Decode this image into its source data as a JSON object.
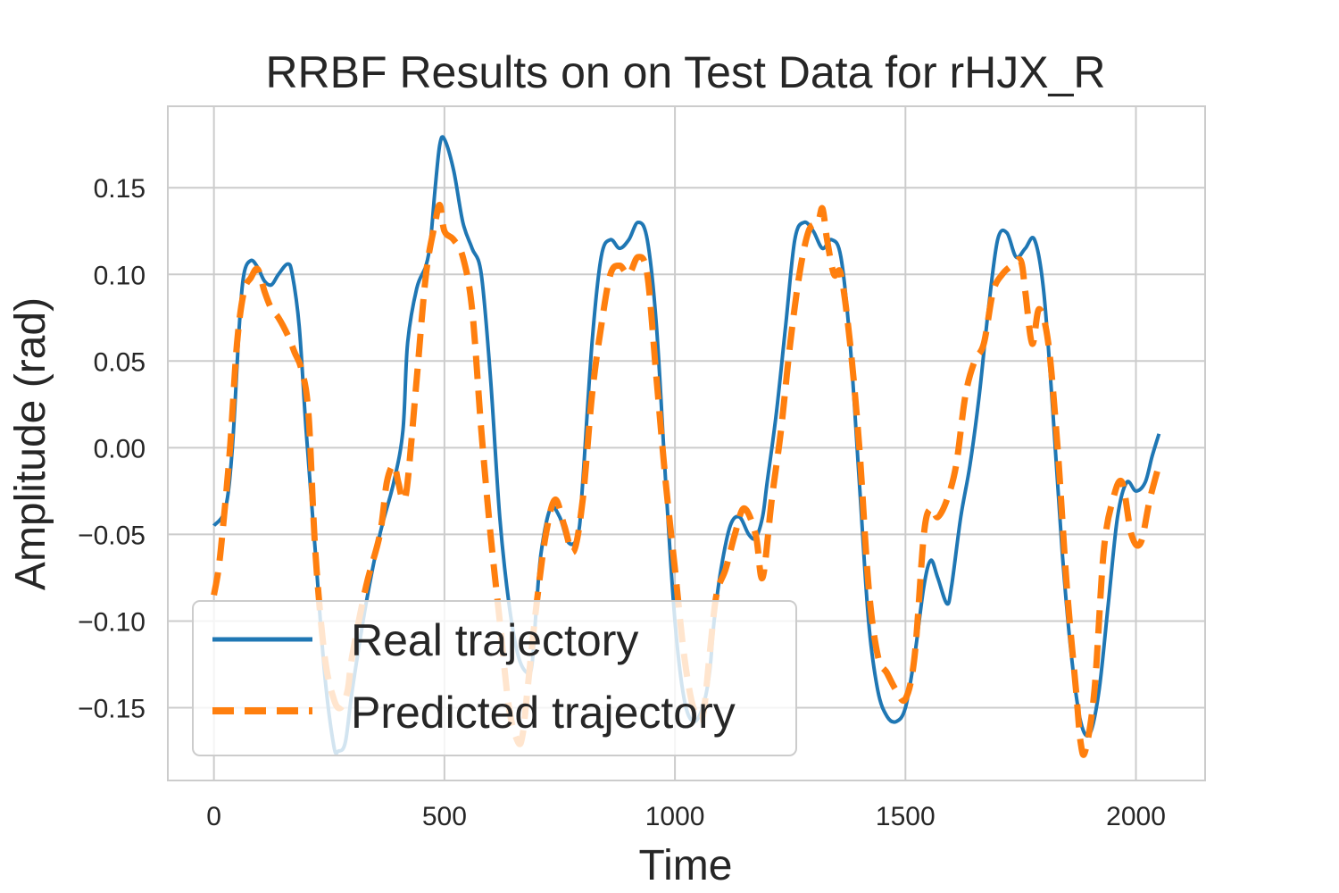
{
  "chart_data": {
    "type": "line",
    "title": "RRBF Results on on Test Data for rHJX_R",
    "xlabel": "Time",
    "ylabel": "Amplitude (rad)",
    "xlim": [
      -100,
      2150
    ],
    "ylim": [
      -0.192,
      0.197
    ],
    "xticks": [
      0,
      500,
      1000,
      1500,
      2000
    ],
    "xtick_labels": [
      "0",
      "500",
      "1000",
      "1500",
      "2000"
    ],
    "yticks": [
      -0.15,
      -0.1,
      -0.05,
      0.0,
      0.05,
      0.1,
      0.15
    ],
    "ytick_labels": [
      "−0.15",
      "−0.10",
      "−0.05",
      "0.00",
      "0.05",
      "0.10",
      "0.15"
    ],
    "grid": true,
    "legend_position": "lower-left",
    "series": [
      {
        "name": "Real trajectory",
        "color": "#1f77b4",
        "style": "solid",
        "x": [
          0,
          25,
          40,
          55,
          65,
          80,
          95,
          110,
          125,
          140,
          160,
          170,
          185,
          200,
          220,
          240,
          260,
          270,
          285,
          300,
          330,
          360,
          390,
          410,
          420,
          440,
          460,
          470,
          480,
          490,
          500,
          520,
          540,
          560,
          580,
          600,
          620,
          640,
          660,
          680,
          690,
          700,
          710,
          730,
          750,
          770,
          790,
          800,
          820,
          840,
          860,
          880,
          900,
          920,
          940,
          960,
          980,
          1000,
          1020,
          1040,
          1060,
          1075,
          1085,
          1100,
          1120,
          1140,
          1160,
          1175,
          1190,
          1200,
          1220,
          1240,
          1260,
          1280,
          1300,
          1320,
          1340,
          1360,
          1380,
          1400,
          1420,
          1440,
          1460,
          1480,
          1500,
          1520,
          1540,
          1555,
          1570,
          1590,
          1600,
          1620,
          1640,
          1660,
          1680,
          1700,
          1720,
          1740,
          1760,
          1780,
          1800,
          1820,
          1840,
          1860,
          1880,
          1900,
          1920,
          1940,
          1960,
          1980,
          2000,
          2020,
          2035,
          2050
        ],
        "y": [
          -0.045,
          -0.035,
          0.0,
          0.07,
          0.1,
          0.108,
          0.104,
          0.096,
          0.094,
          0.1,
          0.106,
          0.1,
          0.07,
          0.01,
          -0.06,
          -0.13,
          -0.172,
          -0.175,
          -0.17,
          -0.14,
          -0.09,
          -0.05,
          -0.02,
          0.01,
          0.06,
          0.092,
          0.105,
          0.12,
          0.15,
          0.175,
          0.178,
          0.16,
          0.13,
          0.115,
          0.1,
          0.04,
          -0.04,
          -0.09,
          -0.12,
          -0.13,
          -0.125,
          -0.09,
          -0.06,
          -0.035,
          -0.04,
          -0.055,
          -0.05,
          -0.02,
          0.06,
          0.11,
          0.12,
          0.115,
          0.12,
          0.13,
          0.12,
          0.07,
          -0.02,
          -0.1,
          -0.145,
          -0.158,
          -0.15,
          -0.13,
          -0.1,
          -0.07,
          -0.045,
          -0.04,
          -0.05,
          -0.052,
          -0.04,
          -0.02,
          0.02,
          0.07,
          0.12,
          0.13,
          0.125,
          0.115,
          0.12,
          0.11,
          0.06,
          -0.02,
          -0.1,
          -0.14,
          -0.155,
          -0.158,
          -0.15,
          -0.12,
          -0.08,
          -0.065,
          -0.075,
          -0.09,
          -0.08,
          -0.04,
          -0.01,
          0.03,
          0.08,
          0.12,
          0.124,
          0.11,
          0.115,
          0.12,
          0.09,
          0.02,
          -0.06,
          -0.12,
          -0.158,
          -0.165,
          -0.14,
          -0.09,
          -0.04,
          -0.02,
          -0.025,
          -0.02,
          -0.005,
          0.008
        ]
      },
      {
        "name": "Predicted trajectory",
        "color": "#ff7f0e",
        "style": "dashed",
        "x": [
          0,
          10,
          20,
          35,
          50,
          65,
          80,
          95,
          110,
          125,
          140,
          160,
          175,
          190,
          205,
          220,
          240,
          260,
          275,
          290,
          300,
          330,
          360,
          375,
          390,
          400,
          410,
          420,
          440,
          460,
          480,
          490,
          500,
          520,
          540,
          560,
          580,
          600,
          620,
          640,
          660,
          670,
          680,
          700,
          720,
          740,
          760,
          780,
          800,
          820,
          840,
          860,
          880,
          900,
          920,
          940,
          960,
          980,
          1000,
          1020,
          1040,
          1060,
          1075,
          1090,
          1110,
          1130,
          1150,
          1175,
          1190,
          1210,
          1230,
          1250,
          1270,
          1290,
          1310,
          1320,
          1330,
          1345,
          1360,
          1380,
          1400,
          1420,
          1440,
          1460,
          1480,
          1500,
          1520,
          1540,
          1555,
          1570,
          1590,
          1610,
          1630,
          1650,
          1670,
          1690,
          1710,
          1730,
          1750,
          1760,
          1775,
          1790,
          1810,
          1830,
          1850,
          1870,
          1880,
          1890,
          1910,
          1930,
          1950,
          1970,
          1990,
          2010,
          2030,
          2050
        ],
        "y": [
          -0.085,
          -0.07,
          -0.045,
          0.0,
          0.06,
          0.09,
          0.098,
          0.103,
          0.09,
          0.08,
          0.075,
          0.065,
          0.055,
          0.045,
          0.02,
          -0.06,
          -0.12,
          -0.145,
          -0.15,
          -0.14,
          -0.12,
          -0.08,
          -0.05,
          -0.02,
          -0.01,
          -0.02,
          -0.03,
          -0.02,
          0.04,
          0.1,
          0.13,
          0.14,
          0.125,
          0.12,
          0.11,
          0.08,
          0.01,
          -0.05,
          -0.1,
          -0.15,
          -0.17,
          -0.165,
          -0.14,
          -0.09,
          -0.05,
          -0.03,
          -0.045,
          -0.06,
          -0.03,
          0.03,
          0.07,
          0.1,
          0.105,
          0.1,
          0.11,
          0.1,
          0.04,
          -0.02,
          -0.07,
          -0.12,
          -0.15,
          -0.155,
          -0.12,
          -0.085,
          -0.07,
          -0.05,
          -0.035,
          -0.05,
          -0.075,
          -0.03,
          0.01,
          0.06,
          0.1,
          0.125,
          0.13,
          0.138,
          0.12,
          0.1,
          0.1,
          0.06,
          0.0,
          -0.08,
          -0.12,
          -0.13,
          -0.14,
          -0.145,
          -0.12,
          -0.05,
          -0.035,
          -0.04,
          -0.03,
          -0.01,
          0.03,
          0.05,
          0.06,
          0.09,
          0.1,
          0.105,
          0.108,
          0.09,
          0.06,
          0.08,
          0.06,
          0.0,
          -0.08,
          -0.14,
          -0.17,
          -0.175,
          -0.14,
          -0.06,
          -0.03,
          -0.02,
          -0.05,
          -0.055,
          -0.03,
          -0.01
        ]
      }
    ]
  }
}
